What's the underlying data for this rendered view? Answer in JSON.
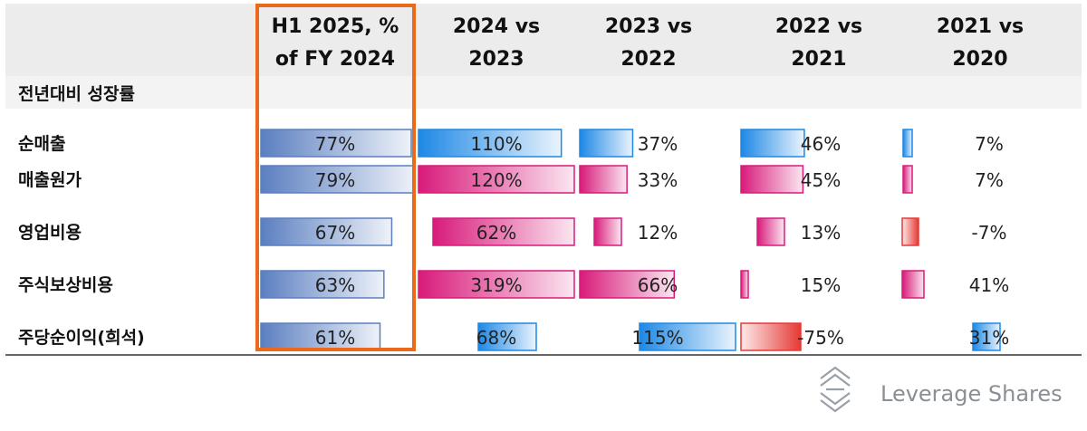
{
  "chart_data": {
    "type": "table",
    "section_label": "전년대비 성장률",
    "columns": [
      {
        "header_line1": "H1 2025, %",
        "header_line2": "of FY 2024",
        "highlighted": true
      },
      {
        "header_line1": "2024 vs",
        "header_line2": "2023"
      },
      {
        "header_line1": "2023 vs",
        "header_line2": "2022"
      },
      {
        "header_line1": "2022 vs",
        "header_line2": "2021"
      },
      {
        "header_line1": "2021 vs",
        "header_line2": "2020"
      }
    ],
    "rows": [
      {
        "label": "순매출",
        "values": [
          77,
          110,
          37,
          46,
          7
        ],
        "labels": [
          "77%",
          "110%",
          "37%",
          "46%",
          "7%"
        ]
      },
      {
        "label": "매출원가",
        "values": [
          79,
          120,
          33,
          45,
          7
        ],
        "labels": [
          "79%",
          "120%",
          "33%",
          "45%",
          "7%"
        ]
      },
      {
        "label": "영업비용",
        "values": [
          67,
          62,
          12,
          13,
          -7
        ],
        "labels": [
          "67%",
          "62%",
          "12%",
          "13%",
          "-7%"
        ]
      },
      {
        "label": "주식보상비용",
        "values": [
          63,
          319,
          66,
          15,
          41
        ],
        "labels": [
          "63%",
          "319%",
          "66%",
          "15%",
          "41%"
        ]
      },
      {
        "label": "주당순이익(희석)",
        "values": [
          61,
          68,
          115,
          -75,
          31
        ],
        "labels": [
          "61%",
          "68%",
          "115%",
          "-75%",
          "31%"
        ]
      }
    ],
    "colors": {
      "h1_bar": "#5b7fc0",
      "positive_good": "#1e88e5",
      "positive_cost": "#d81b7a",
      "negative": "#e53935",
      "highlight_border": "#e86a1a",
      "header_bg": "#ececec"
    }
  },
  "brand": {
    "name": "Leverage Shares"
  }
}
